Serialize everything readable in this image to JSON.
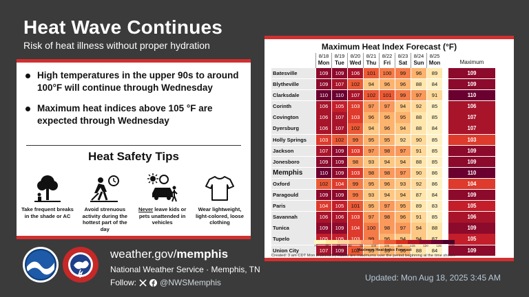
{
  "header": {
    "title": "Heat Wave Continues",
    "subtitle": "Risk of heat illness without proper hydration"
  },
  "bullets": [
    "High temperatures in the upper 90s to around 100°F will continue through Wednesday",
    "Maximum heat indices above 105 °F are expected through Wednesday"
  ],
  "tips": {
    "title": "Heat Safety Tips",
    "items": [
      {
        "icon": "tree-shade-icon",
        "text": "Take frequent breaks in the shade or AC"
      },
      {
        "icon": "strenuous-work-icon",
        "text": "Avoid strenuous activity during the hottest part of the day"
      },
      {
        "icon": "car-kids-pets-icon",
        "text_em": "Never",
        "text": "leave kids or pets unattended in vehicles"
      },
      {
        "icon": "tshirt-icon",
        "text": "Wear lightweight, light-colored, loose clothing"
      }
    ]
  },
  "footer": {
    "web_prefix": "weather.gov/",
    "web_bold": "memphis",
    "nws": "National Weather Service · Memphis, TN",
    "follow_label": "Follow:",
    "handle": "@NWSMemphis",
    "updated": "Updated: Mon Aug 18, 2025 3:45 AM",
    "logos": [
      "noaa-logo",
      "nws-logo"
    ]
  },
  "forecast": {
    "title": "Maximum Heat Index Forecast (°F)",
    "days": [
      {
        "date": "8/18",
        "dow": "Mon"
      },
      {
        "date": "8/19",
        "dow": "Tue"
      },
      {
        "date": "8/20",
        "dow": "Wed"
      },
      {
        "date": "8/21",
        "dow": "Thu"
      },
      {
        "date": "8/22",
        "dow": "Fri"
      },
      {
        "date": "8/23",
        "dow": "Sat"
      },
      {
        "date": "8/24",
        "dow": "Sun"
      },
      {
        "date": "8/25",
        "dow": "Mon"
      }
    ],
    "max_label": "Maximum",
    "rows": [
      {
        "city": "Batesville",
        "values": [
          109,
          109,
          106,
          101,
          100,
          99,
          96,
          89
        ],
        "max": 109
      },
      {
        "city": "Blytheville",
        "values": [
          109,
          107,
          102,
          94,
          96,
          96,
          88,
          84
        ],
        "max": 109
      },
      {
        "city": "Clarksdale",
        "values": [
          110,
          110,
          107,
          102,
          101,
          99,
          97,
          91
        ],
        "max": 110
      },
      {
        "city": "Corinth",
        "values": [
          106,
          105,
          103,
          97,
          97,
          94,
          92,
          85
        ],
        "max": 106
      },
      {
        "city": "Covington",
        "values": [
          106,
          107,
          103,
          96,
          96,
          95,
          88,
          85
        ],
        "max": 107
      },
      {
        "city": "Dyersburg",
        "values": [
          106,
          107,
          102,
          94,
          96,
          94,
          88,
          84
        ],
        "max": 107
      },
      {
        "city": "Holly Springs",
        "values": [
          103,
          102,
          99,
          95,
          95,
          92,
          90,
          85
        ],
        "max": 103
      },
      {
        "city": "Jackson",
        "values": [
          107,
          109,
          103,
          97,
          98,
          97,
          91,
          85
        ],
        "max": 109
      },
      {
        "city": "Jonesboro",
        "values": [
          109,
          109,
          98,
          93,
          94,
          94,
          88,
          85
        ],
        "max": 109
      },
      {
        "city": "Memphis",
        "values": [
          110,
          109,
          103,
          98,
          98,
          97,
          90,
          86
        ],
        "max": 110,
        "big": true
      },
      {
        "city": "Oxford",
        "values": [
          102,
          104,
          99,
          95,
          96,
          93,
          92,
          86
        ],
        "max": 104
      },
      {
        "city": "Paragould",
        "values": [
          109,
          109,
          99,
          93,
          94,
          94,
          87,
          84
        ],
        "max": 109
      },
      {
        "city": "Paris",
        "values": [
          104,
          105,
          101,
          95,
          97,
          95,
          89,
          83
        ],
        "max": 105
      },
      {
        "city": "Savannah",
        "values": [
          106,
          106,
          103,
          97,
          98,
          96,
          91,
          85
        ],
        "max": 106
      },
      {
        "city": "Tunica",
        "values": [
          109,
          109,
          104,
          100,
          98,
          97,
          94,
          88
        ],
        "max": 109
      },
      {
        "city": "Tupelo",
        "values": [
          105,
          105,
          103,
          99,
          96,
          94,
          94,
          87
        ],
        "max": 105
      },
      {
        "city": "Union City",
        "values": [
          107,
          109,
          102,
          95,
          96,
          96,
          88,
          84
        ],
        "max": 109
      }
    ],
    "legend": {
      "labels": [
        "75",
        "80",
        "85",
        "90",
        "95",
        "100",
        "105",
        "110",
        "115",
        "120",
        "125",
        "130"
      ],
      "colors": [
        "#fff7bc",
        "#fde8a0",
        "#fdd49e",
        "#fdbb84",
        "#fc9f6a",
        "#f77f4e",
        "#ec5a36",
        "#d7301f",
        "#b01623",
        "#8c0a2c",
        "#6a0030",
        "#4a0028"
      ],
      "title": "Maximum Heat Index Forecast"
    },
    "created": "Created: 3 am CDT Mon 8/18/2025  |  Values are maximums over the period beginning at the time shown."
  }
}
